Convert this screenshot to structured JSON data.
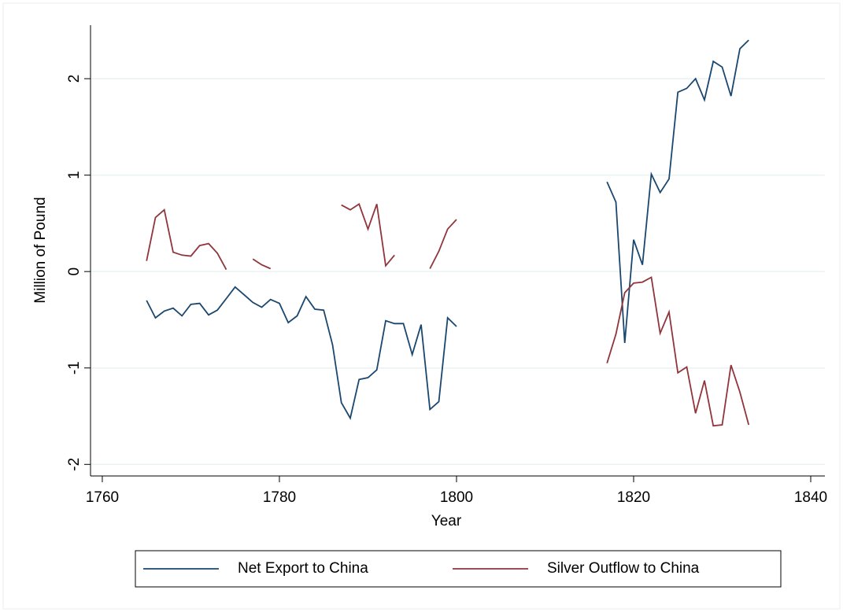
{
  "chart_data": {
    "type": "line",
    "xlabel": "Year",
    "ylabel": "Million of Pound",
    "x": [
      1765,
      1766,
      1767,
      1768,
      1769,
      1770,
      1771,
      1772,
      1773,
      1774,
      1775,
      1776,
      1777,
      1778,
      1779,
      1780,
      1781,
      1782,
      1783,
      1784,
      1785,
      1786,
      1787,
      1788,
      1789,
      1790,
      1791,
      1792,
      1793,
      1794,
      1795,
      1796,
      1797,
      1798,
      1799,
      1800,
      1801,
      1802,
      1803,
      1804,
      1805,
      1806,
      1807,
      1808,
      1809,
      1810,
      1811,
      1812,
      1813,
      1814,
      1815,
      1816,
      1817,
      1818,
      1819,
      1820,
      1821,
      1822,
      1823,
      1824,
      1825,
      1826,
      1827,
      1828,
      1829,
      1830,
      1831,
      1832,
      1833
    ],
    "series": [
      {
        "name": "Net Export to China",
        "color": "#1a476f",
        "values": [
          -0.3,
          -0.48,
          -0.41,
          -0.38,
          -0.46,
          -0.34,
          -0.33,
          -0.45,
          -0.4,
          -0.28,
          -0.16,
          -0.24,
          -0.32,
          -0.37,
          -0.29,
          -0.33,
          -0.53,
          -0.46,
          -0.26,
          -0.39,
          -0.4,
          -0.76,
          -1.36,
          -1.52,
          -1.12,
          -1.1,
          -1.02,
          -0.51,
          -0.54,
          -0.54,
          -0.86,
          -0.55,
          -1.43,
          -1.35,
          -0.48,
          -0.57,
          null,
          null,
          null,
          null,
          null,
          null,
          null,
          null,
          null,
          null,
          null,
          null,
          null,
          null,
          null,
          null,
          0.93,
          0.72,
          -0.74,
          0.33,
          0.07,
          1.01,
          0.82,
          0.96,
          1.86,
          1.9,
          2.0,
          1.78,
          2.18,
          2.12,
          1.82,
          2.31,
          2.4
        ]
      },
      {
        "name": "Silver Outflow to China",
        "color": "#90353b",
        "values": [
          0.11,
          0.56,
          0.64,
          0.2,
          0.17,
          0.16,
          0.27,
          0.29,
          0.19,
          0.02,
          null,
          null,
          0.13,
          0.07,
          0.03,
          null,
          null,
          null,
          null,
          null,
          null,
          null,
          0.69,
          0.64,
          0.7,
          0.44,
          0.7,
          0.06,
          0.17,
          null,
          null,
          null,
          0.03,
          0.21,
          0.44,
          0.54,
          null,
          null,
          null,
          null,
          null,
          null,
          null,
          null,
          null,
          null,
          null,
          null,
          null,
          null,
          null,
          null,
          -0.95,
          -0.65,
          -0.22,
          -0.12,
          -0.11,
          -0.06,
          -0.64,
          -0.42,
          -1.05,
          -0.99,
          -1.47,
          -1.13,
          -1.6,
          -1.59,
          -0.97,
          -1.25,
          -1.59
        ]
      }
    ],
    "xlim": [
      1758.67,
      1841.6
    ],
    "xticks": [
      1760,
      1780,
      1800,
      1820,
      1840
    ],
    "ylim": [
      -2.12,
      2.555
    ],
    "yticks": [
      -2,
      -1,
      0,
      1,
      2
    ],
    "grid": true,
    "legend": "bottom"
  }
}
